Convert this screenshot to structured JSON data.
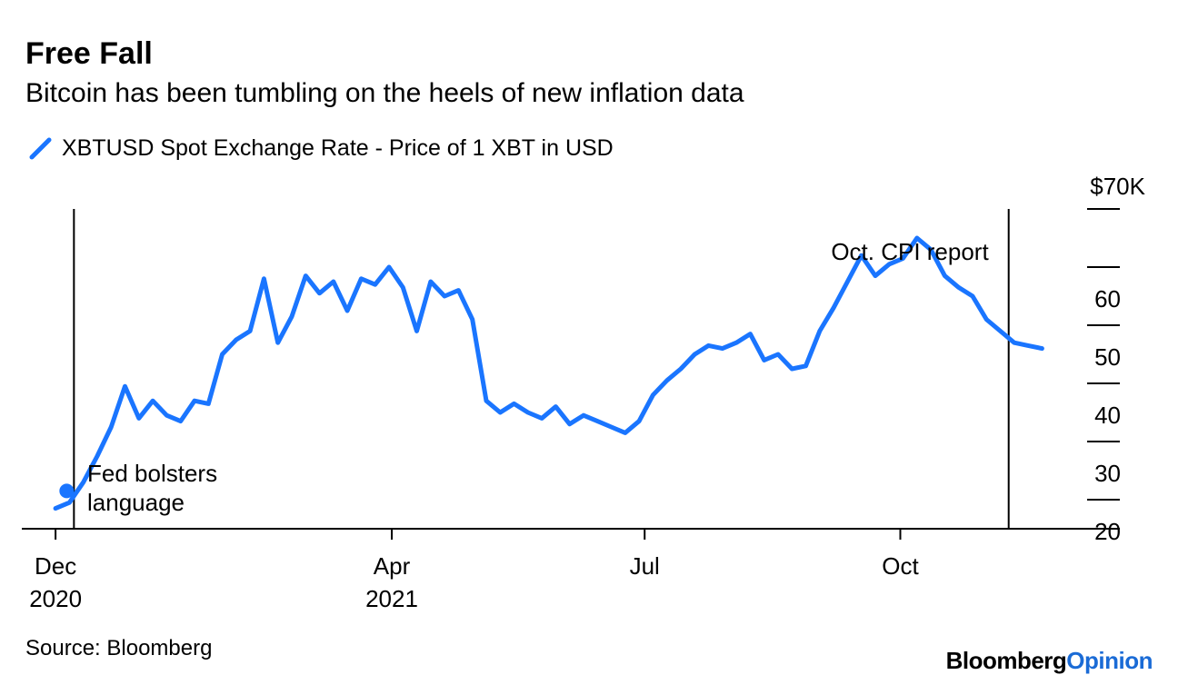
{
  "title": "Free Fall",
  "subtitle": "Bitcoin has been tumbling on the heels of new inflation data",
  "source": "Source: Bloomberg",
  "brand": {
    "part1": "Bloomberg",
    "part2": "Opinion"
  },
  "colors": {
    "series": "#1a75ff",
    "brand_accent": "#1a6bd6"
  },
  "chart_data": {
    "type": "line",
    "title": "Free Fall",
    "subtitle": "Bitcoin has been tumbling on the heels of new inflation data",
    "series": [
      {
        "name": "XBTUSD Spot Exchange Rate - Price of 1 XBT in USD",
        "x_days": [
          0,
          5,
          10,
          15,
          20,
          25,
          30,
          35,
          40,
          45,
          50,
          55,
          60,
          65,
          70,
          75,
          80,
          85,
          90,
          95,
          100,
          105,
          110,
          115,
          120,
          125,
          130,
          135,
          140,
          145,
          150,
          155,
          160,
          165,
          170,
          175,
          180,
          185,
          190,
          195,
          200,
          205,
          210,
          215,
          220,
          225,
          230,
          235,
          240,
          245,
          250,
          255,
          260,
          265,
          270,
          275,
          280,
          285,
          290,
          295,
          300,
          305,
          310,
          315,
          320,
          325,
          330,
          335,
          340,
          345,
          350,
          355
        ],
        "values": [
          18.5,
          19.5,
          23.0,
          27.5,
          32.5,
          39.5,
          34.0,
          37.0,
          34.5,
          33.5,
          37.0,
          36.5,
          45.0,
          47.5,
          49.0,
          58.0,
          47.0,
          51.5,
          58.5,
          55.5,
          57.5,
          52.5,
          58.0,
          57.0,
          60.0,
          56.5,
          49.0,
          57.5,
          55.0,
          56.0,
          51.0,
          37.0,
          35.0,
          36.5,
          35.0,
          34.0,
          36.0,
          33.0,
          34.5,
          33.5,
          32.5,
          31.5,
          33.5,
          38.0,
          40.5,
          42.5,
          45.0,
          46.5,
          46.0,
          47.0,
          48.5,
          44.0,
          45.0,
          42.5,
          43.0,
          49.0,
          53.0,
          57.5,
          62.0,
          58.5,
          60.5,
          61.5,
          65.0,
          63.0,
          58.5,
          56.5,
          55.0,
          51.0,
          49.0,
          47.0,
          46.5,
          46.0
        ]
      }
    ],
    "x_ticks": [
      {
        "day": 0,
        "line1": "Dec",
        "line2": "2020"
      },
      {
        "day": 121,
        "line1": "Apr",
        "line2": "2021"
      },
      {
        "day": 212,
        "line1": "Jul",
        "line2": ""
      },
      {
        "day": 304,
        "line1": "Oct",
        "line2": ""
      }
    ],
    "y_ticks": [
      {
        "value": 70,
        "label": "$70K"
      },
      {
        "value": 60,
        "label": "60"
      },
      {
        "value": 50,
        "label": "50"
      },
      {
        "value": 40,
        "label": "40"
      },
      {
        "value": 30,
        "label": "30"
      },
      {
        "value": 20,
        "label": "20"
      }
    ],
    "ylabel": "",
    "xlabel": "",
    "ylim": [
      15,
      70
    ],
    "xlim": [
      -2,
      383
    ],
    "annotations": [
      {
        "day": 4,
        "value": 21.5,
        "text_lines": [
          "Fed bolsters",
          "language"
        ],
        "marker": "dot"
      },
      {
        "day": 343,
        "value": 70,
        "text_lines": [
          "Oct. CPI report"
        ],
        "marker": "line"
      }
    ],
    "grid": false,
    "legend": "top-left"
  }
}
